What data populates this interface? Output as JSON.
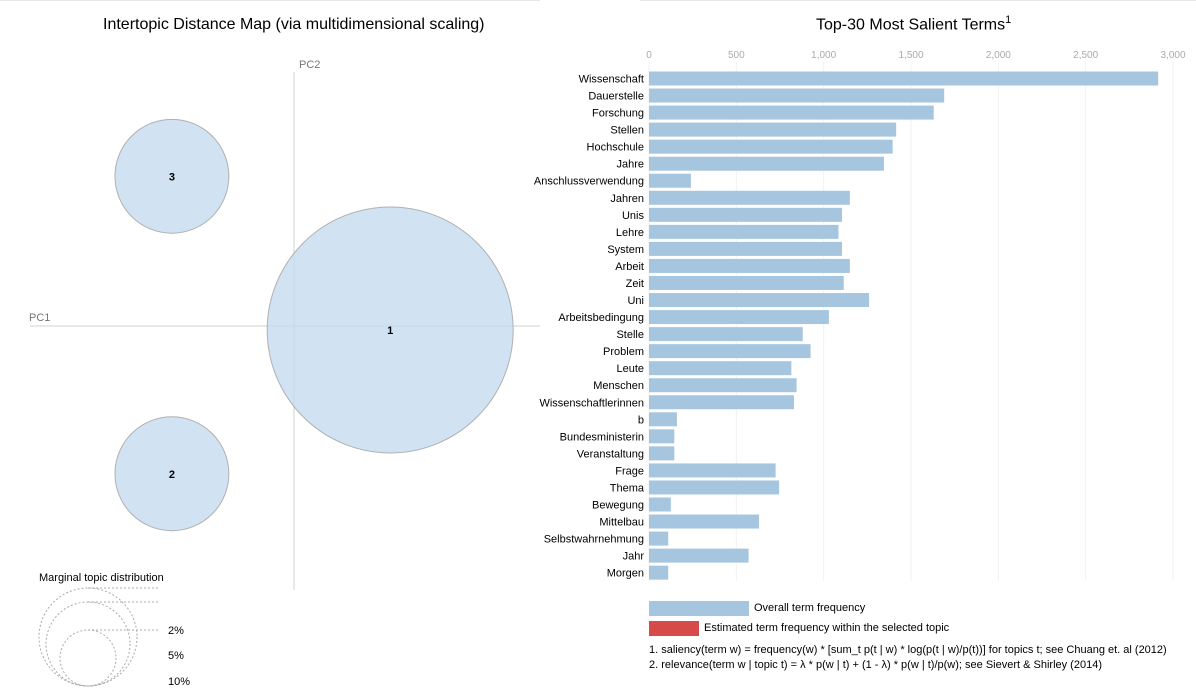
{
  "left_panel": {
    "title": "Intertopic Distance Map (via multidimensional scaling)",
    "axis_pc1": "PC1",
    "axis_pc2": "PC2",
    "legend_title": "Marginal topic distribution",
    "legend_labels": [
      "2%",
      "5%",
      "10%"
    ]
  },
  "right_panel": {
    "title": "Top-30 Most Salient Terms",
    "title_sup": "1",
    "legend_overall": "Overall term frequency",
    "legend_estimated": "Estimated term frequency within the selected topic",
    "note1": "1. saliency(term w) = frequency(w) * [sum_t p(t | w) * log(p(t | w)/p(t))] for topics t; see Chuang et. al (2012)",
    "note2": "2. relevance(term w | topic t) = λ * p(w | t) + (1 - λ) * p(w | t)/p(w); see Sievert & Shirley (2014)"
  },
  "colors": {
    "overall_bar": "#a6c6df",
    "estimated_bar": "#d64a4a",
    "topic_circle": "#c6dbef"
  },
  "chart_data": [
    {
      "type": "scatter",
      "title": "Intertopic Distance Map (via multidimensional scaling)",
      "xlabel": "PC1",
      "ylabel": "PC2",
      "points": [
        {
          "label": "1",
          "pc1": 0.26,
          "pc2": -0.02,
          "marginal": 0.7
        },
        {
          "label": "2",
          "pc1": -0.33,
          "pc2": -0.75,
          "marginal": 0.15
        },
        {
          "label": "3",
          "pc1": -0.33,
          "pc2": 0.76,
          "marginal": 0.15
        }
      ]
    },
    {
      "type": "bar",
      "orientation": "horizontal",
      "title": "Top-30 Most Salient Terms",
      "xlim": [
        0,
        3000
      ],
      "ticks": [
        0,
        500,
        1000,
        1500,
        2000,
        2500,
        3000
      ],
      "tick_labels": [
        "0",
        "500",
        "1,000",
        "1,500",
        "2,000",
        "2,500",
        "3,000"
      ],
      "categories": [
        "Wissenschaft",
        "Dauerstelle",
        "Forschung",
        "Stellen",
        "Hochschule",
        "Jahre",
        "Anschlussverwendung",
        "Jahren",
        "Unis",
        "Lehre",
        "System",
        "Arbeit",
        "Zeit",
        "Uni",
        "Arbeitsbedingung",
        "Stelle",
        "Problem",
        "Leute",
        "Menschen",
        "Wissenschaftlerinnen",
        "b",
        "Bundesministerin",
        "Veranstaltung",
        "Frage",
        "Thema",
        "Bewegung",
        "Mittelbau",
        "Selbstwahrnehmung",
        "Jahr",
        "Morgen"
      ],
      "series": [
        {
          "name": "Overall term frequency",
          "values": [
            2915,
            1690,
            1630,
            1415,
            1395,
            1345,
            240,
            1150,
            1105,
            1085,
            1105,
            1150,
            1115,
            1260,
            1030,
            880,
            925,
            815,
            845,
            830,
            160,
            145,
            145,
            725,
            745,
            125,
            630,
            110,
            570,
            110
          ]
        }
      ]
    }
  ]
}
